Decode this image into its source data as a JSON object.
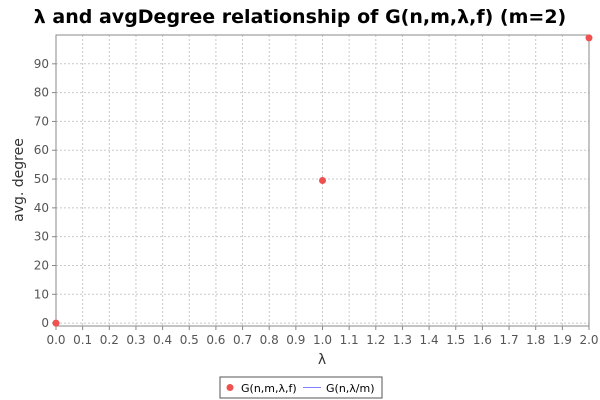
{
  "chart_data": {
    "type": "scatter",
    "title": "λ and avgDegree relationship of G(n,m,λ,f) (m=2)",
    "xlabel": "λ",
    "ylabel": "avg. degree",
    "xlim": [
      0.0,
      2.0
    ],
    "ylim": [
      -1,
      100
    ],
    "x_ticks": [
      "0.0",
      "0.1",
      "0.2",
      "0.3",
      "0.4",
      "0.5",
      "0.6",
      "0.7",
      "0.8",
      "0.9",
      "1.0",
      "1.1",
      "1.2",
      "1.3",
      "1.4",
      "1.5",
      "1.6",
      "1.7",
      "1.8",
      "1.9",
      "2.0"
    ],
    "y_ticks": [
      0,
      10,
      20,
      30,
      40,
      50,
      60,
      70,
      80,
      90
    ],
    "grid": true,
    "legend_position": "bottom-center",
    "series": [
      {
        "name": "G(n,m,λ,f)",
        "style": "points",
        "color": "#ef5050",
        "x": [
          0.0,
          1.0,
          2.0
        ],
        "y": [
          0,
          49.5,
          99
        ]
      },
      {
        "name": "G(n,λ/m)",
        "style": "line",
        "color": "#8080ff",
        "x": [],
        "y": []
      }
    ]
  }
}
